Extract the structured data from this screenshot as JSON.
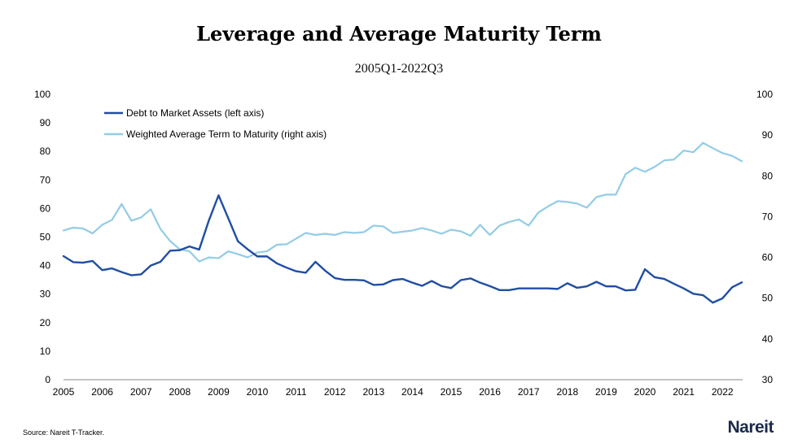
{
  "chart_data": {
    "type": "line",
    "title": "Leverage and Average Maturity Term",
    "subtitle": "2005Q1-2022Q3",
    "xlabel": "",
    "ylabel_left": "",
    "ylabel_right": "",
    "x_tick_labels": [
      "2005",
      "2006",
      "2007",
      "2008",
      "2009",
      "2010",
      "2011",
      "2012",
      "2013",
      "2014",
      "2015",
      "2016",
      "2017",
      "2018",
      "2019",
      "2020",
      "2021",
      "2022"
    ],
    "x_start": 2005,
    "ylim_left": [
      0,
      100
    ],
    "yticks_left": [
      0,
      10,
      20,
      30,
      40,
      50,
      60,
      70,
      80,
      90,
      100
    ],
    "ylim_right": [
      30,
      100
    ],
    "yticks_right": [
      30,
      40,
      50,
      60,
      70,
      80,
      90,
      100
    ],
    "legend_position": "top-left",
    "grid": false,
    "series": [
      {
        "name": "Debt to Market Assets (left axis)",
        "axis": "left",
        "color": "#1f4ea3",
        "values": [
          43.3,
          41.2,
          41.0,
          41.6,
          38.4,
          39.0,
          37.7,
          36.6,
          36.9,
          40.0,
          41.3,
          45.2,
          45.4,
          46.7,
          45.6,
          55.8,
          64.6,
          56.6,
          48.5,
          45.7,
          43.2,
          43.2,
          40.8,
          39.3,
          38.0,
          37.5,
          41.3,
          38.2,
          35.6,
          35.0,
          35.0,
          34.8,
          33.2,
          33.4,
          34.9,
          35.3,
          34.0,
          32.9,
          34.6,
          32.8,
          32.1,
          34.9,
          35.5,
          34.0,
          32.8,
          31.4,
          31.4,
          32.0,
          32.0,
          32.0,
          32.0,
          31.8,
          33.8,
          32.2,
          32.7,
          34.3,
          32.7,
          32.7,
          31.3,
          31.5,
          38.7,
          35.9,
          35.3,
          33.6,
          32.0,
          30.1,
          29.6,
          27.0,
          28.5,
          32.4,
          34.1
        ]
      },
      {
        "name": "Weighted Average Term to Maturity (right axis)",
        "axis": "right",
        "color": "#93cce6",
        "values": [
          66.6,
          67.3,
          67.1,
          65.9,
          68.0,
          69.2,
          73.1,
          69.0,
          69.8,
          71.8,
          67.0,
          64.0,
          62.0,
          61.5,
          59.0,
          60.0,
          59.8,
          61.5,
          60.8,
          60.0,
          61.2,
          61.5,
          63.1,
          63.2,
          64.6,
          66.0,
          65.5,
          65.8,
          65.5,
          66.2,
          66.0,
          66.2,
          67.8,
          67.6,
          66.0,
          66.3,
          66.6,
          67.2,
          66.6,
          65.8,
          66.8,
          66.4,
          65.3,
          68.0,
          65.5,
          67.8,
          68.7,
          69.3,
          67.8,
          71.0,
          72.5,
          73.8,
          73.6,
          73.2,
          72.2,
          74.8,
          75.4,
          75.4,
          80.4,
          82.0,
          81.0,
          82.2,
          83.8,
          84.0,
          86.2,
          85.8,
          88.1,
          86.8,
          85.6,
          84.9,
          83.6
        ]
      }
    ]
  },
  "footer": {
    "source": "Source: Nareit T-Tracker.",
    "logo_text": "Nareit"
  }
}
